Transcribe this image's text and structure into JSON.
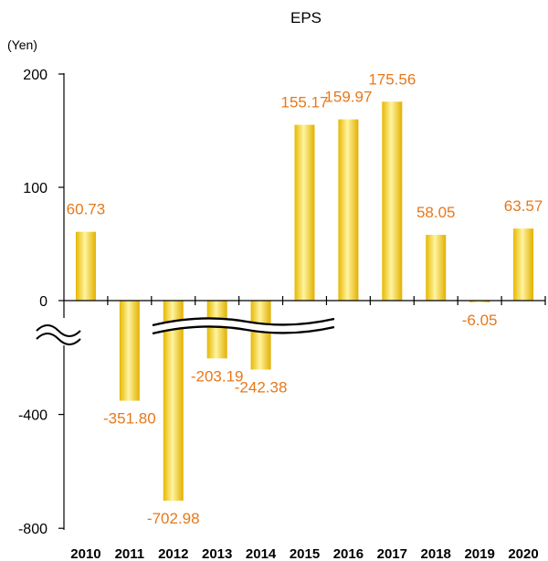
{
  "chart_data": {
    "type": "bar",
    "title": "EPS",
    "unit_label": "(Yen)",
    "categories": [
      "2010",
      "2011",
      "2012",
      "2013",
      "2014",
      "2015",
      "2016",
      "2017",
      "2018",
      "2019",
      "2020"
    ],
    "values": [
      60.73,
      -351.8,
      -702.98,
      -203.19,
      -242.38,
      155.17,
      159.97,
      175.56,
      58.05,
      -6.05,
      63.57
    ],
    "value_labels": [
      "60.73",
      "-351.80",
      "-702.98",
      "-203.19",
      "-242.38",
      "155.17",
      "159.97",
      "175.56",
      "58.05",
      "-6.05",
      "63.57"
    ],
    "y_ticks": [
      "200",
      "100",
      "0",
      "-400",
      "-800"
    ],
    "axis_break": true,
    "bar_color": "#f5cf2a",
    "label_color": "#e8781a",
    "grid": false
  }
}
